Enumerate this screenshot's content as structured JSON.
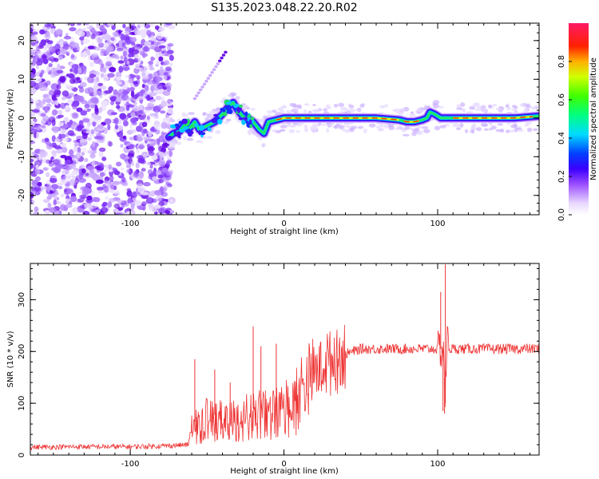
{
  "title": "S135.2023.048.22.20.R02",
  "chart_data": [
    {
      "type": "heatmap",
      "xlabel": "Height of straight line (km)",
      "ylabel": "Frequency (Hz)",
      "xlim": [
        -165,
        166
      ],
      "ylim": [
        -25,
        24.5
      ],
      "xticks": [
        -100,
        0,
        100
      ],
      "yticks": [
        -20,
        -10,
        0,
        10,
        20
      ],
      "colorbar": {
        "label": "Normalized spectral amplitude",
        "ticks": [
          0.0,
          0.2,
          0.4,
          0.6,
          0.8
        ],
        "colors": [
          "#f0e6ff",
          "#9b4dff",
          "#5a00e0",
          "#0000ff",
          "#00e5ff",
          "#00ff66",
          "#c8ff00",
          "#ffb000",
          "#ff0000",
          "#ff1a66"
        ]
      },
      "ridge": {
        "x": [
          -75,
          -72,
          -68,
          -65,
          -62,
          -58,
          -55,
          -50,
          -45,
          -40,
          -36,
          -33,
          -30,
          -27,
          -24,
          -20,
          -16,
          -13,
          -10,
          -5,
          0,
          10,
          20,
          40,
          60,
          75,
          80,
          85,
          90,
          93,
          95,
          98,
          102,
          110,
          130,
          150,
          166
        ],
        "y": [
          -5,
          -4,
          -3.5,
          -2,
          -3,
          -1,
          -3,
          -2,
          -1,
          1,
          3,
          4,
          2,
          0.5,
          0,
          -1,
          -3,
          -4,
          -1,
          -0.5,
          0,
          0,
          0,
          0,
          0,
          -0.5,
          -1,
          -1,
          -0.5,
          0,
          1.5,
          1,
          0,
          0,
          0,
          0,
          0.5
        ]
      },
      "noise_region_x": [
        -165,
        -73
      ],
      "streak": {
        "x": [
          -58,
          -38
        ],
        "y": [
          5,
          17
        ]
      }
    },
    {
      "type": "line",
      "xlabel": "Height of straight line (km)",
      "ylabel": "SNR (10 * v/v)",
      "xlim": [
        -165,
        166
      ],
      "ylim": [
        0,
        370
      ],
      "xticks": [
        -100,
        0,
        100
      ],
      "yticks": [
        0,
        100,
        200,
        300
      ],
      "color": "#ee3333",
      "envelope": {
        "x": [
          -165,
          -140,
          -100,
          -75,
          -62,
          -60,
          -50,
          -40,
          -30,
          -20,
          -10,
          0,
          10,
          20,
          30,
          40,
          50,
          60,
          70,
          80,
          90,
          100,
          103,
          104,
          105,
          106,
          107,
          110,
          120,
          140,
          166
        ],
        "y": [
          15,
          16,
          16,
          18,
          20,
          60,
          80,
          75,
          80,
          90,
          90,
          100,
          125,
          160,
          185,
          195,
          205,
          205,
          205,
          205,
          205,
          205,
          205,
          200,
          100,
          230,
          205,
          205,
          205,
          205,
          205
        ]
      },
      "spikes": [
        {
          "x": -58,
          "y": 185
        },
        {
          "x": -45,
          "y": 165
        },
        {
          "x": -35,
          "y": 140
        },
        {
          "x": -20,
          "y": 248
        },
        {
          "x": -15,
          "y": 210
        },
        {
          "x": -5,
          "y": 215
        },
        {
          "x": 102,
          "y": 315
        },
        {
          "x": 103.5,
          "y": 85
        },
        {
          "x": 105,
          "y": 368
        },
        {
          "x": 104.5,
          "y": 80
        }
      ]
    }
  ]
}
